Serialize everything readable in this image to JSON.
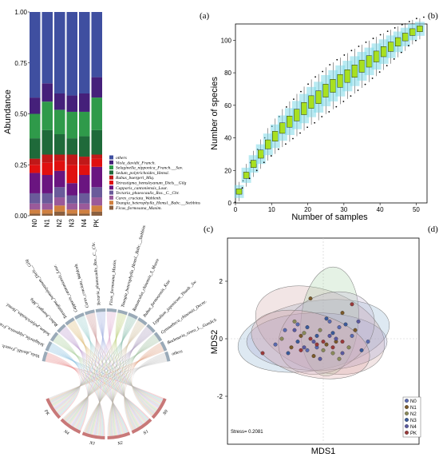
{
  "panels": {
    "b": "(b)",
    "a": "(a)",
    "c": "(c)",
    "d": "(d)"
  },
  "colors": {
    "others": "#3f4fa0",
    "Viola_davidii_Franch.": "#45207a",
    "Selaginella_nipponica_Franch.__Sav.": "#2f9a4a",
    "Sedum_polytrichoides_Hemsl.": "#1f6a3a",
    "Rubus_buergeri_Miq.": "#c01818",
    "Tetrastigma_hemsleyanum_Diels__Gilg": "#e01010",
    "Capparis_cantoniensis_Lour.": "#6a1580",
    "Tectaria_phaeocaulis_Ros._C._Chr.": "#6a5a9a",
    "Carex_cruciata_Wahlenb.": "#9a5a9a",
    "Toungia_heterophylla_Hemsl._Babc.__Stebbins": "#d08040",
    "Ficus_formosana_Maxim.": "#8a6040"
  },
  "chart_data": [
    {
      "type": "bar",
      "panel": "a",
      "stacked": true,
      "categories": [
        "N0",
        "N1",
        "N2",
        "N3",
        "N4",
        "PK"
      ],
      "ylabel": "Abundance",
      "ylim": [
        0,
        1
      ],
      "yticks": [
        "0.00",
        "0.25",
        "0.50",
        "0.75",
        "1.00"
      ],
      "series": [
        {
          "name": "Ficus_formosana_Maxim.",
          "values": [
            0.01,
            0.01,
            0.02,
            0.01,
            0.01,
            0.02
          ]
        },
        {
          "name": "Toungia_heterophylla_Hemsl._Babc.__Stebbins",
          "values": [
            0.02,
            0.02,
            0.03,
            0.02,
            0.02,
            0.03
          ]
        },
        {
          "name": "Carex_cruciata_Wahlenb.",
          "values": [
            0.03,
            0.03,
            0.04,
            0.03,
            0.03,
            0.04
          ]
        },
        {
          "name": "Tectaria_phaeocaulis_Ros._C._Chr.",
          "values": [
            0.05,
            0.05,
            0.05,
            0.04,
            0.05,
            0.05
          ]
        },
        {
          "name": "Capparis_cantoniensis_Lour.",
          "values": [
            0.1,
            0.09,
            0.08,
            0.06,
            0.09,
            0.1
          ]
        },
        {
          "name": "Tetrastigma_hemsleyanum_Diels__Gilg",
          "values": [
            0.04,
            0.06,
            0.05,
            0.09,
            0.05,
            0.04
          ]
        },
        {
          "name": "Rubus_buergeri_Miq.",
          "values": [
            0.03,
            0.04,
            0.03,
            0.05,
            0.04,
            0.02
          ]
        },
        {
          "name": "Sedum_polytrichoides_Hemsl.",
          "values": [
            0.1,
            0.12,
            0.1,
            0.08,
            0.1,
            0.12
          ]
        },
        {
          "name": "Selaginella_nipponica_Franch.__Sav.",
          "values": [
            0.12,
            0.14,
            0.12,
            0.13,
            0.12,
            0.16
          ]
        },
        {
          "name": "Viola_davidii_Franch.",
          "values": [
            0.08,
            0.09,
            0.08,
            0.08,
            0.09,
            0.1
          ]
        },
        {
          "name": "others",
          "values": [
            0.42,
            0.35,
            0.4,
            0.41,
            0.4,
            0.32
          ]
        }
      ]
    },
    {
      "type": "scatter",
      "panel": "b",
      "xlabel": "Number of samples",
      "ylabel": "Number of species",
      "xlim": [
        0,
        53
      ],
      "ylim": [
        0,
        110
      ],
      "xticks": [
        0,
        10,
        20,
        30,
        40,
        50
      ],
      "yticks": [
        0,
        20,
        40,
        60,
        80,
        100
      ],
      "x": [
        1,
        3,
        5,
        7,
        9,
        11,
        13,
        15,
        17,
        19,
        21,
        23,
        25,
        27,
        29,
        31,
        33,
        35,
        37,
        39,
        41,
        43,
        45,
        47,
        49,
        51
      ],
      "y": [
        7,
        17,
        24,
        30,
        36,
        41,
        46,
        50,
        54,
        58,
        62,
        65,
        69,
        72,
        75,
        78,
        81,
        84,
        87,
        90,
        93,
        96,
        99,
        102,
        105,
        107
      ]
    },
    {
      "type": "chord",
      "panel": "c",
      "groups": [
        "N0",
        "N1",
        "N2",
        "N3",
        "N4",
        "PK"
      ],
      "species": [
        "Viola_davidii_Franch.",
        "Selaginella_nipponica_Franch.__Sav.",
        "Sedum_polytrichoides_Hemsl.",
        "Rubus_buergeri_Miq.",
        "Tetrastigma_hemsleyanum_Diels__Gilg",
        "Capparis_cantoniensis_Lour.",
        "Carex_cruciata_Wahlenb.",
        "Tectaria_phaeocaulis_Ros._C._Chr.",
        "Ficus_formosana_Maxim.",
        "Toungia_heterophylla_Hemsl._Babc.__Stebbins",
        "Ranunculus_chinensis_S_Moore",
        "Rubus_formosensis_Ktze",
        "Lygodium_japonicum_Thunb._Sw.",
        "Gymnotheca_chinensis_Decne.",
        "Boehmeria_nivea_L._Gaudich",
        "others"
      ]
    },
    {
      "type": "scatter",
      "panel": "d",
      "xlabel": "MDS1",
      "ylabel": "MDS2",
      "yticks": [
        "2",
        "0",
        "-2"
      ],
      "annotation": "Stress= 0.2081",
      "legend": [
        "N0",
        "N1",
        "N2",
        "N3",
        "N4",
        "PK"
      ],
      "series": [
        {
          "name": "N0",
          "points": [
            [
              -1.2,
              0.3
            ],
            [
              -0.8,
              0.5
            ],
            [
              0.5,
              0.4
            ],
            [
              -0.2,
              -0.3
            ],
            [
              0.9,
              0.1
            ],
            [
              -1.5,
              -0.2
            ],
            [
              0.2,
              0.6
            ],
            [
              1.4,
              -0.1
            ],
            [
              -0.5,
              -0.4
            ]
          ]
        },
        {
          "name": "N1",
          "points": [
            [
              -0.4,
              1.4
            ],
            [
              -1.0,
              -0.3
            ],
            [
              0.6,
              0.9
            ],
            [
              0.1,
              -0.2
            ],
            [
              -0.7,
              0.1
            ],
            [
              1.0,
              0.3
            ],
            [
              -0.3,
              -0.6
            ],
            [
              0.4,
              -0.1
            ]
          ]
        },
        {
          "name": "N2",
          "points": [
            [
              -0.6,
              0.2
            ],
            [
              0.3,
              -0.5
            ],
            [
              -0.9,
              0.6
            ],
            [
              0.8,
              -0.3
            ],
            [
              -0.1,
              0.3
            ],
            [
              0.5,
              -0.7
            ],
            [
              -1.3,
              0.0
            ],
            [
              0.0,
              -0.4
            ]
          ]
        },
        {
          "name": "N3",
          "points": [
            [
              -0.2,
              0.1
            ],
            [
              0.7,
              0.5
            ],
            [
              -1.1,
              -0.5
            ],
            [
              0.3,
              0.2
            ],
            [
              -0.5,
              0.4
            ],
            [
              1.2,
              -0.4
            ],
            [
              -0.8,
              -0.1
            ],
            [
              0.1,
              0.7
            ]
          ]
        },
        {
          "name": "N4",
          "points": [
            [
              -0.3,
              -0.1
            ],
            [
              0.4,
              0.0
            ],
            [
              -0.9,
              0.3
            ],
            [
              0.6,
              -0.5
            ],
            [
              -0.1,
              -0.7
            ],
            [
              1.1,
              0.6
            ],
            [
              -0.6,
              -0.3
            ],
            [
              0.2,
              0.1
            ]
          ]
        },
        {
          "name": "PK",
          "points": [
            [
              -1.9,
              -0.5
            ],
            [
              0.9,
              1.2
            ],
            [
              -0.2,
              -0.2
            ],
            [
              0.3,
              -0.3
            ],
            [
              -0.4,
              0.0
            ],
            [
              0.0,
              -0.1
            ],
            [
              0.6,
              -0.1
            ],
            [
              -0.7,
              -0.4
            ]
          ]
        }
      ],
      "legend_colors": {
        "N0": "#5a6ab0",
        "N1": "#7a5a2a",
        "N2": "#8a8a5a",
        "N3": "#3a5a9a",
        "N4": "#5a5aa0",
        "PK": "#9a3a3a"
      }
    }
  ]
}
